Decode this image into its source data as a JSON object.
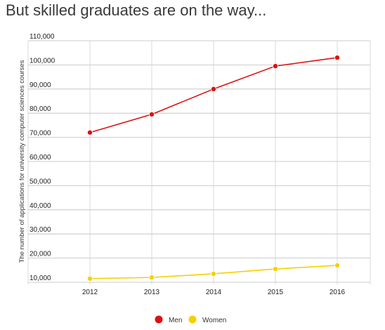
{
  "title": "But skilled graduates are on the way...",
  "chart_data": {
    "type": "line",
    "title": "But skilled graduates are on the way...",
    "xlabel": "",
    "ylabel": "The number of applications for university computer sciences courses",
    "categories": [
      "2012",
      "2013",
      "2014",
      "2015",
      "2016"
    ],
    "y_ticks": [
      "110,000",
      "100,000",
      "90,000",
      "80,000",
      "70,000",
      "60,000",
      "50,000",
      "40,000",
      "30,000",
      "20,000",
      "10,000"
    ],
    "ylim": [
      10000,
      110000
    ],
    "grid": true,
    "legend": "bottom-center",
    "series": [
      {
        "name": "Men",
        "color": "#dd1111",
        "values": [
          72000,
          79500,
          90000,
          99500,
          103000
        ]
      },
      {
        "name": "Women",
        "color": "#f5d000",
        "values": [
          11500,
          12000,
          13500,
          15500,
          17000
        ]
      }
    ]
  }
}
